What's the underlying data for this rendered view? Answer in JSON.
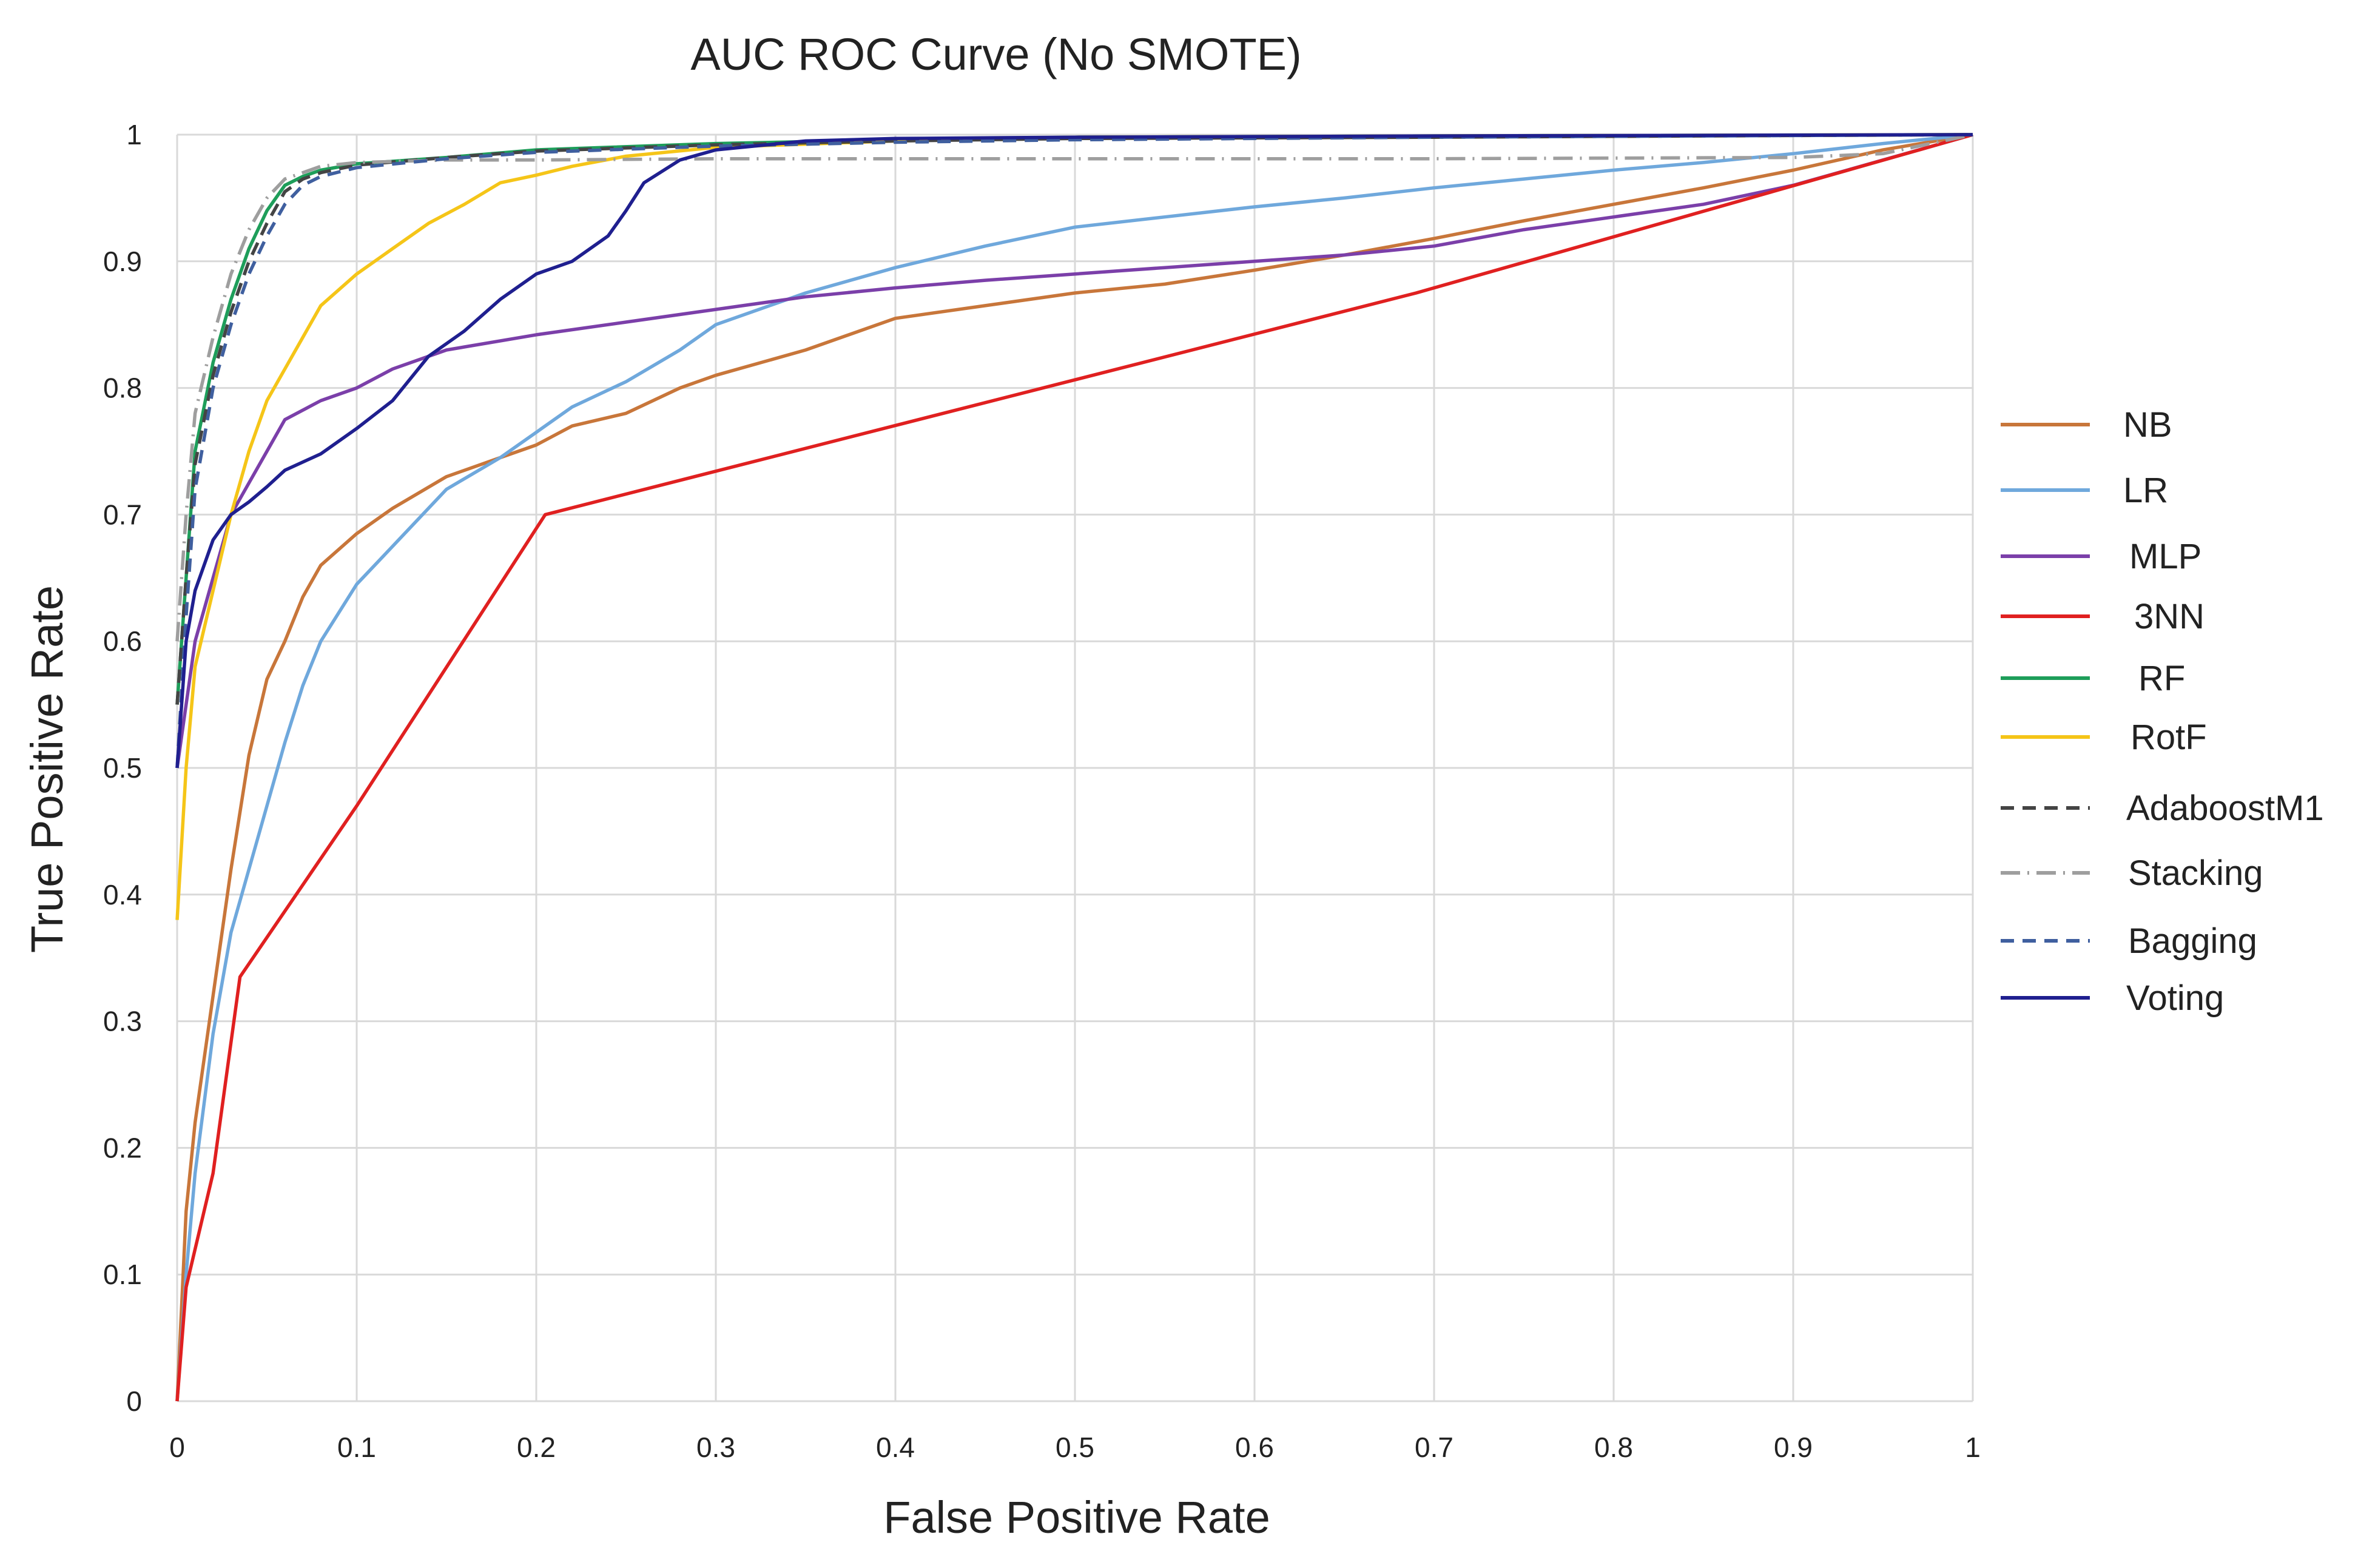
{
  "chart_data": {
    "type": "line",
    "title": "AUC ROC Curve (No SMOTE)",
    "xlabel": "False Positive Rate",
    "ylabel": "True Positive Rate",
    "xlim": [
      0,
      1
    ],
    "ylim": [
      0,
      1
    ],
    "grid": true,
    "legend_position": "right",
    "x_ticks": [
      "0",
      "0.1",
      "0.2",
      "0.3",
      "0.4",
      "0.5",
      "0.6",
      "0.7",
      "0.8",
      "0.9",
      "1"
    ],
    "y_ticks": [
      "0",
      "0.1",
      "0.2",
      "0.3",
      "0.4",
      "0.5",
      "0.6",
      "0.7",
      "0.8",
      "0.9",
      "1"
    ],
    "series": [
      {
        "name": "NB",
        "color": "#C8763A",
        "dash": "solid",
        "points": [
          [
            0,
            0
          ],
          [
            0.005,
            0.15
          ],
          [
            0.01,
            0.22
          ],
          [
            0.02,
            0.32
          ],
          [
            0.03,
            0.42
          ],
          [
            0.04,
            0.51
          ],
          [
            0.05,
            0.57
          ],
          [
            0.06,
            0.6
          ],
          [
            0.07,
            0.635
          ],
          [
            0.08,
            0.66
          ],
          [
            0.1,
            0.685
          ],
          [
            0.12,
            0.705
          ],
          [
            0.15,
            0.73
          ],
          [
            0.18,
            0.745
          ],
          [
            0.2,
            0.755
          ],
          [
            0.22,
            0.77
          ],
          [
            0.25,
            0.78
          ],
          [
            0.28,
            0.8
          ],
          [
            0.3,
            0.81
          ],
          [
            0.35,
            0.83
          ],
          [
            0.4,
            0.855
          ],
          [
            0.45,
            0.865
          ],
          [
            0.5,
            0.875
          ],
          [
            0.55,
            0.882
          ],
          [
            0.6,
            0.893
          ],
          [
            0.65,
            0.905
          ],
          [
            0.7,
            0.918
          ],
          [
            0.75,
            0.932
          ],
          [
            0.8,
            0.945
          ],
          [
            0.85,
            0.958
          ],
          [
            0.9,
            0.972
          ],
          [
            0.95,
            0.988
          ],
          [
            1,
            1
          ]
        ]
      },
      {
        "name": "LR",
        "color": "#6FA8DC",
        "dash": "solid",
        "points": [
          [
            0,
            0
          ],
          [
            0.005,
            0.1
          ],
          [
            0.01,
            0.18
          ],
          [
            0.02,
            0.29
          ],
          [
            0.03,
            0.37
          ],
          [
            0.04,
            0.42
          ],
          [
            0.05,
            0.47
          ],
          [
            0.06,
            0.52
          ],
          [
            0.07,
            0.565
          ],
          [
            0.08,
            0.6
          ],
          [
            0.1,
            0.645
          ],
          [
            0.12,
            0.675
          ],
          [
            0.15,
            0.72
          ],
          [
            0.18,
            0.745
          ],
          [
            0.2,
            0.765
          ],
          [
            0.22,
            0.785
          ],
          [
            0.25,
            0.805
          ],
          [
            0.28,
            0.83
          ],
          [
            0.3,
            0.85
          ],
          [
            0.35,
            0.875
          ],
          [
            0.4,
            0.895
          ],
          [
            0.45,
            0.912
          ],
          [
            0.5,
            0.927
          ],
          [
            0.55,
            0.935
          ],
          [
            0.6,
            0.943
          ],
          [
            0.65,
            0.95
          ],
          [
            0.7,
            0.958
          ],
          [
            0.75,
            0.965
          ],
          [
            0.8,
            0.972
          ],
          [
            0.85,
            0.978
          ],
          [
            0.9,
            0.985
          ],
          [
            0.95,
            0.993
          ],
          [
            1,
            1
          ]
        ]
      },
      {
        "name": "MLP",
        "color": "#7B3FA9",
        "dash": "solid",
        "points": [
          [
            0,
            0.5
          ],
          [
            0.005,
            0.55
          ],
          [
            0.01,
            0.6
          ],
          [
            0.02,
            0.65
          ],
          [
            0.03,
            0.7
          ],
          [
            0.04,
            0.725
          ],
          [
            0.05,
            0.75
          ],
          [
            0.06,
            0.775
          ],
          [
            0.08,
            0.79
          ],
          [
            0.1,
            0.8
          ],
          [
            0.12,
            0.815
          ],
          [
            0.15,
            0.83
          ],
          [
            0.2,
            0.842
          ],
          [
            0.25,
            0.852
          ],
          [
            0.3,
            0.862
          ],
          [
            0.35,
            0.872
          ],
          [
            0.4,
            0.879
          ],
          [
            0.45,
            0.885
          ],
          [
            0.5,
            0.89
          ],
          [
            0.55,
            0.895
          ],
          [
            0.6,
            0.9
          ],
          [
            0.65,
            0.905
          ],
          [
            0.7,
            0.912
          ],
          [
            0.75,
            0.925
          ],
          [
            0.8,
            0.935
          ],
          [
            0.85,
            0.945
          ],
          [
            0.9,
            0.96
          ],
          [
            0.95,
            0.98
          ],
          [
            1,
            1
          ]
        ]
      },
      {
        "name": "3NN",
        "color": "#E02020",
        "dash": "solid",
        "points": [
          [
            0,
            0
          ],
          [
            0.005,
            0.09
          ],
          [
            0.01,
            0.12
          ],
          [
            0.02,
            0.18
          ],
          [
            0.035,
            0.335
          ],
          [
            0.1,
            0.47
          ],
          [
            0.205,
            0.7
          ],
          [
            0.69,
            0.875
          ],
          [
            1,
            1
          ]
        ]
      },
      {
        "name": "RF",
        "color": "#1E9E5A",
        "dash": "solid",
        "points": [
          [
            0,
            0.55
          ],
          [
            0.005,
            0.65
          ],
          [
            0.01,
            0.75
          ],
          [
            0.02,
            0.82
          ],
          [
            0.03,
            0.87
          ],
          [
            0.04,
            0.91
          ],
          [
            0.05,
            0.94
          ],
          [
            0.06,
            0.96
          ],
          [
            0.07,
            0.967
          ],
          [
            0.08,
            0.972
          ],
          [
            0.1,
            0.977
          ],
          [
            0.15,
            0.982
          ],
          [
            0.2,
            0.988
          ],
          [
            0.3,
            0.993
          ],
          [
            0.4,
            0.996
          ],
          [
            0.5,
            0.998
          ],
          [
            0.7,
            0.999
          ],
          [
            1,
            1
          ]
        ]
      },
      {
        "name": "RotF",
        "color": "#F5C518",
        "dash": "solid",
        "points": [
          [
            0,
            0.38
          ],
          [
            0.005,
            0.5
          ],
          [
            0.01,
            0.58
          ],
          [
            0.02,
            0.64
          ],
          [
            0.03,
            0.7
          ],
          [
            0.04,
            0.75
          ],
          [
            0.05,
            0.79
          ],
          [
            0.06,
            0.815
          ],
          [
            0.07,
            0.84
          ],
          [
            0.08,
            0.865
          ],
          [
            0.1,
            0.89
          ],
          [
            0.12,
            0.91
          ],
          [
            0.14,
            0.93
          ],
          [
            0.16,
            0.945
          ],
          [
            0.18,
            0.962
          ],
          [
            0.2,
            0.968
          ],
          [
            0.22,
            0.975
          ],
          [
            0.25,
            0.983
          ],
          [
            0.3,
            0.99
          ],
          [
            0.4,
            0.995
          ],
          [
            0.5,
            0.998
          ],
          [
            0.7,
            0.999
          ],
          [
            1,
            1
          ]
        ]
      },
      {
        "name": "AdaboostM1",
        "color": "#444444",
        "dash": "dashed",
        "points": [
          [
            0,
            0.55
          ],
          [
            0.005,
            0.65
          ],
          [
            0.01,
            0.74
          ],
          [
            0.02,
            0.81
          ],
          [
            0.03,
            0.86
          ],
          [
            0.04,
            0.9
          ],
          [
            0.05,
            0.93
          ],
          [
            0.06,
            0.955
          ],
          [
            0.07,
            0.965
          ],
          [
            0.08,
            0.97
          ],
          [
            0.1,
            0.976
          ],
          [
            0.15,
            0.982
          ],
          [
            0.2,
            0.987
          ],
          [
            0.3,
            0.992
          ],
          [
            0.4,
            0.995
          ],
          [
            0.5,
            0.997
          ],
          [
            0.7,
            0.998
          ],
          [
            1,
            1
          ]
        ]
      },
      {
        "name": "Stacking",
        "color": "#9E9E9E",
        "dash": "dashdot",
        "points": [
          [
            0,
            0.6
          ],
          [
            0.005,
            0.7
          ],
          [
            0.01,
            0.78
          ],
          [
            0.02,
            0.84
          ],
          [
            0.03,
            0.89
          ],
          [
            0.04,
            0.925
          ],
          [
            0.05,
            0.95
          ],
          [
            0.06,
            0.965
          ],
          [
            0.08,
            0.975
          ],
          [
            0.1,
            0.978
          ],
          [
            0.15,
            0.98
          ],
          [
            0.2,
            0.98
          ],
          [
            0.3,
            0.981
          ],
          [
            0.5,
            0.981
          ],
          [
            0.7,
            0.981
          ],
          [
            0.9,
            0.982
          ],
          [
            0.95,
            0.985
          ],
          [
            1,
            1
          ]
        ]
      },
      {
        "name": "Bagging",
        "color": "#3F5F9F",
        "dash": "dashed",
        "points": [
          [
            0,
            0.5
          ],
          [
            0.005,
            0.62
          ],
          [
            0.01,
            0.72
          ],
          [
            0.02,
            0.8
          ],
          [
            0.03,
            0.85
          ],
          [
            0.04,
            0.89
          ],
          [
            0.05,
            0.92
          ],
          [
            0.06,
            0.945
          ],
          [
            0.07,
            0.96
          ],
          [
            0.08,
            0.967
          ],
          [
            0.1,
            0.974
          ],
          [
            0.15,
            0.981
          ],
          [
            0.2,
            0.986
          ],
          [
            0.3,
            0.991
          ],
          [
            0.4,
            0.994
          ],
          [
            0.5,
            0.996
          ],
          [
            0.7,
            0.998
          ],
          [
            1,
            1
          ]
        ]
      },
      {
        "name": "Voting",
        "color": "#1F1F8F",
        "dash": "solid",
        "points": [
          [
            0,
            0.5
          ],
          [
            0.005,
            0.6
          ],
          [
            0.01,
            0.64
          ],
          [
            0.02,
            0.68
          ],
          [
            0.03,
            0.7
          ],
          [
            0.04,
            0.71
          ],
          [
            0.05,
            0.722
          ],
          [
            0.06,
            0.735
          ],
          [
            0.08,
            0.748
          ],
          [
            0.1,
            0.768
          ],
          [
            0.12,
            0.79
          ],
          [
            0.14,
            0.825
          ],
          [
            0.16,
            0.845
          ],
          [
            0.18,
            0.87
          ],
          [
            0.2,
            0.89
          ],
          [
            0.22,
            0.9
          ],
          [
            0.24,
            0.92
          ],
          [
            0.25,
            0.94
          ],
          [
            0.26,
            0.962
          ],
          [
            0.28,
            0.98
          ],
          [
            0.3,
            0.988
          ],
          [
            0.35,
            0.995
          ],
          [
            0.4,
            0.997
          ],
          [
            0.5,
            0.998
          ],
          [
            0.7,
            0.999
          ],
          [
            1,
            1
          ]
        ]
      }
    ]
  }
}
